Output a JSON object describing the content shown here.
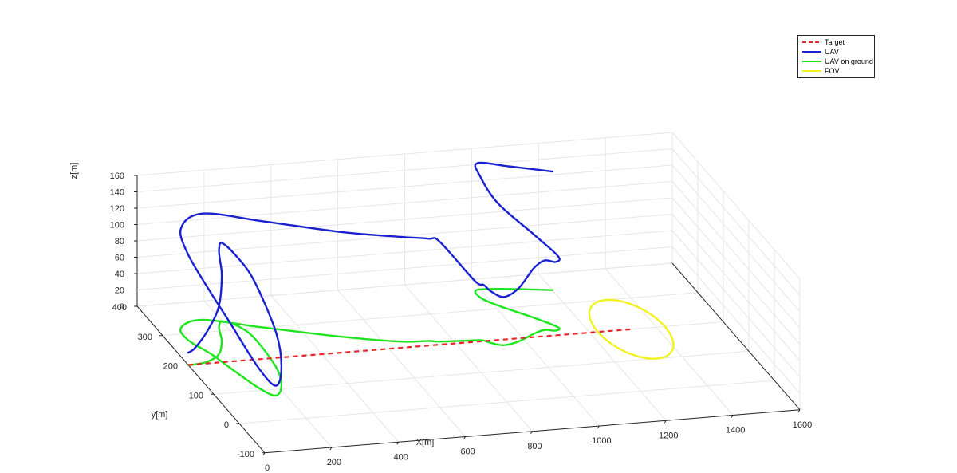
{
  "chart_data": {
    "type": "line3d",
    "xlabel": "X[m]",
    "ylabel": "y[m]",
    "zlabel": "z[m]",
    "xlim": [
      0,
      1600
    ],
    "ylim": [
      -100,
      400
    ],
    "zlim": [
      0,
      160
    ],
    "xticks": [
      "0",
      "200",
      "400",
      "600",
      "800",
      "1000",
      "1200",
      "1400",
      "1600"
    ],
    "yticks": [
      "-100",
      "0",
      "100",
      "200",
      "300",
      "400"
    ],
    "zticks": [
      "0",
      "20",
      "40",
      "60",
      "80",
      "100",
      "120",
      "140",
      "160"
    ],
    "grid": true,
    "legend_position": "top-right",
    "legend": [
      "Target",
      "UAV",
      "UAV on ground",
      "FOV"
    ],
    "series": [
      {
        "name": "Target",
        "color": "#e8262a",
        "style": "dashed",
        "points": [
          [
            0,
            200,
            0
          ],
          [
            1325,
            200,
            0
          ]
        ]
      },
      {
        "name": "UAV",
        "color": "#1a21d0",
        "style": "solid",
        "points": [
          [
            0,
            200,
            15
          ],
          [
            20,
            200,
            20
          ],
          [
            60,
            205,
            37
          ],
          [
            110,
            225,
            58
          ],
          [
            150,
            265,
            80
          ],
          [
            170,
            300,
            90
          ],
          [
            180,
            315,
            95
          ],
          [
            200,
            330,
            96
          ],
          [
            230,
            315,
            85
          ],
          [
            250,
            270,
            70
          ],
          [
            240,
            170,
            42
          ],
          [
            210,
            110,
            22
          ],
          [
            170,
            80,
            12
          ],
          [
            140,
            110,
            25
          ],
          [
            110,
            180,
            55
          ],
          [
            90,
            230,
            75
          ],
          [
            60,
            280,
            105
          ],
          [
            70,
            320,
            122
          ],
          [
            150,
            340,
            130
          ],
          [
            300,
            300,
            130
          ],
          [
            500,
            250,
            128
          ],
          [
            650,
            220,
            128
          ],
          [
            730,
            215,
            125
          ],
          [
            760,
            210,
            122
          ],
          [
            860,
            205,
            73
          ],
          [
            885,
            202,
            68
          ],
          [
            900,
            192,
            63
          ],
          [
            930,
            182,
            59
          ],
          [
            980,
            190,
            65
          ],
          [
            1040,
            210,
            80
          ],
          [
            1080,
            220,
            85
          ],
          [
            1110,
            215,
            84
          ],
          [
            1125,
            225,
            87
          ],
          [
            1080,
            262,
            102
          ],
          [
            1010,
            310,
            125
          ],
          [
            980,
            340,
            148
          ],
          [
            990,
            365,
            155
          ],
          [
            1080,
            360,
            150
          ],
          [
            1200,
            345,
            145
          ]
        ]
      },
      {
        "name": "UAV on ground",
        "color": "#1fe51f",
        "style": "solid",
        "points": [
          [
            0,
            200,
            0
          ],
          [
            20,
            200,
            0
          ],
          [
            60,
            205,
            0
          ],
          [
            110,
            225,
            0
          ],
          [
            150,
            265,
            0
          ],
          [
            170,
            300,
            0
          ],
          [
            180,
            315,
            0
          ],
          [
            200,
            330,
            0
          ],
          [
            230,
            315,
            0
          ],
          [
            250,
            270,
            0
          ],
          [
            240,
            170,
            0
          ],
          [
            210,
            110,
            0
          ],
          [
            170,
            80,
            0
          ],
          [
            140,
            110,
            0
          ],
          [
            110,
            180,
            0
          ],
          [
            90,
            230,
            0
          ],
          [
            60,
            280,
            0
          ],
          [
            70,
            320,
            0
          ],
          [
            150,
            340,
            0
          ],
          [
            300,
            300,
            0
          ],
          [
            500,
            250,
            0
          ],
          [
            650,
            220,
            0
          ],
          [
            730,
            215,
            0
          ],
          [
            760,
            210,
            0
          ],
          [
            860,
            205,
            0
          ],
          [
            885,
            202,
            0
          ],
          [
            900,
            192,
            0
          ],
          [
            930,
            182,
            0
          ],
          [
            980,
            190,
            0
          ],
          [
            1040,
            210,
            0
          ],
          [
            1080,
            220,
            0
          ],
          [
            1110,
            215,
            0
          ],
          [
            1125,
            225,
            0
          ],
          [
            1080,
            262,
            0
          ],
          [
            1010,
            310,
            0
          ],
          [
            980,
            340,
            0
          ],
          [
            990,
            365,
            0
          ],
          [
            1080,
            360,
            0
          ],
          [
            1200,
            345,
            0
          ]
        ]
      },
      {
        "name": "FOV",
        "color": "#f2f21e",
        "style": "solid",
        "center": [
          1325,
          200,
          0
        ],
        "radius": 100
      }
    ]
  }
}
